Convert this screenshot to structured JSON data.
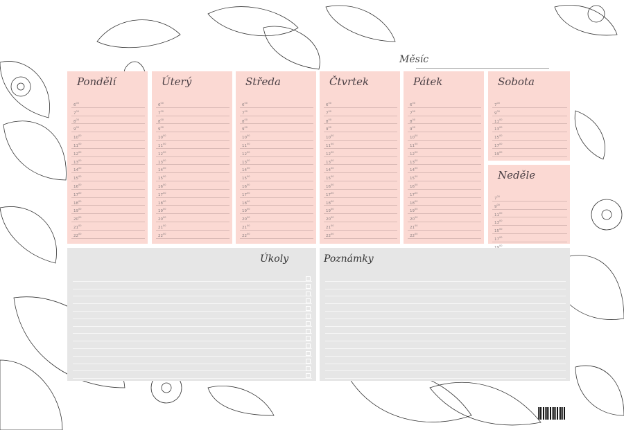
{
  "month_label": "Měsíc",
  "weekdays": [
    {
      "name": "Pondělí"
    },
    {
      "name": "Úterý"
    },
    {
      "name": "Středa"
    },
    {
      "name": "Čtvrtek"
    },
    {
      "name": "Pátek"
    }
  ],
  "weekday_hours": [
    "6",
    "7",
    "8",
    "9",
    "10",
    "11",
    "12",
    "13",
    "14",
    "15",
    "16",
    "17",
    "18",
    "19",
    "20",
    "21",
    "22"
  ],
  "weekend": [
    {
      "name": "Sobota"
    },
    {
      "name": "Neděle"
    }
  ],
  "weekend_hours": [
    "7",
    "9",
    "11",
    "13",
    "15",
    "17",
    "19"
  ],
  "minutes": "00",
  "tasks_label": "Úkoly",
  "notes_label": "Poznámky",
  "colors": {
    "day_bg": "#fbd9d3",
    "notes_bg": "#e6e6e6",
    "line": "#d9b9b5"
  }
}
